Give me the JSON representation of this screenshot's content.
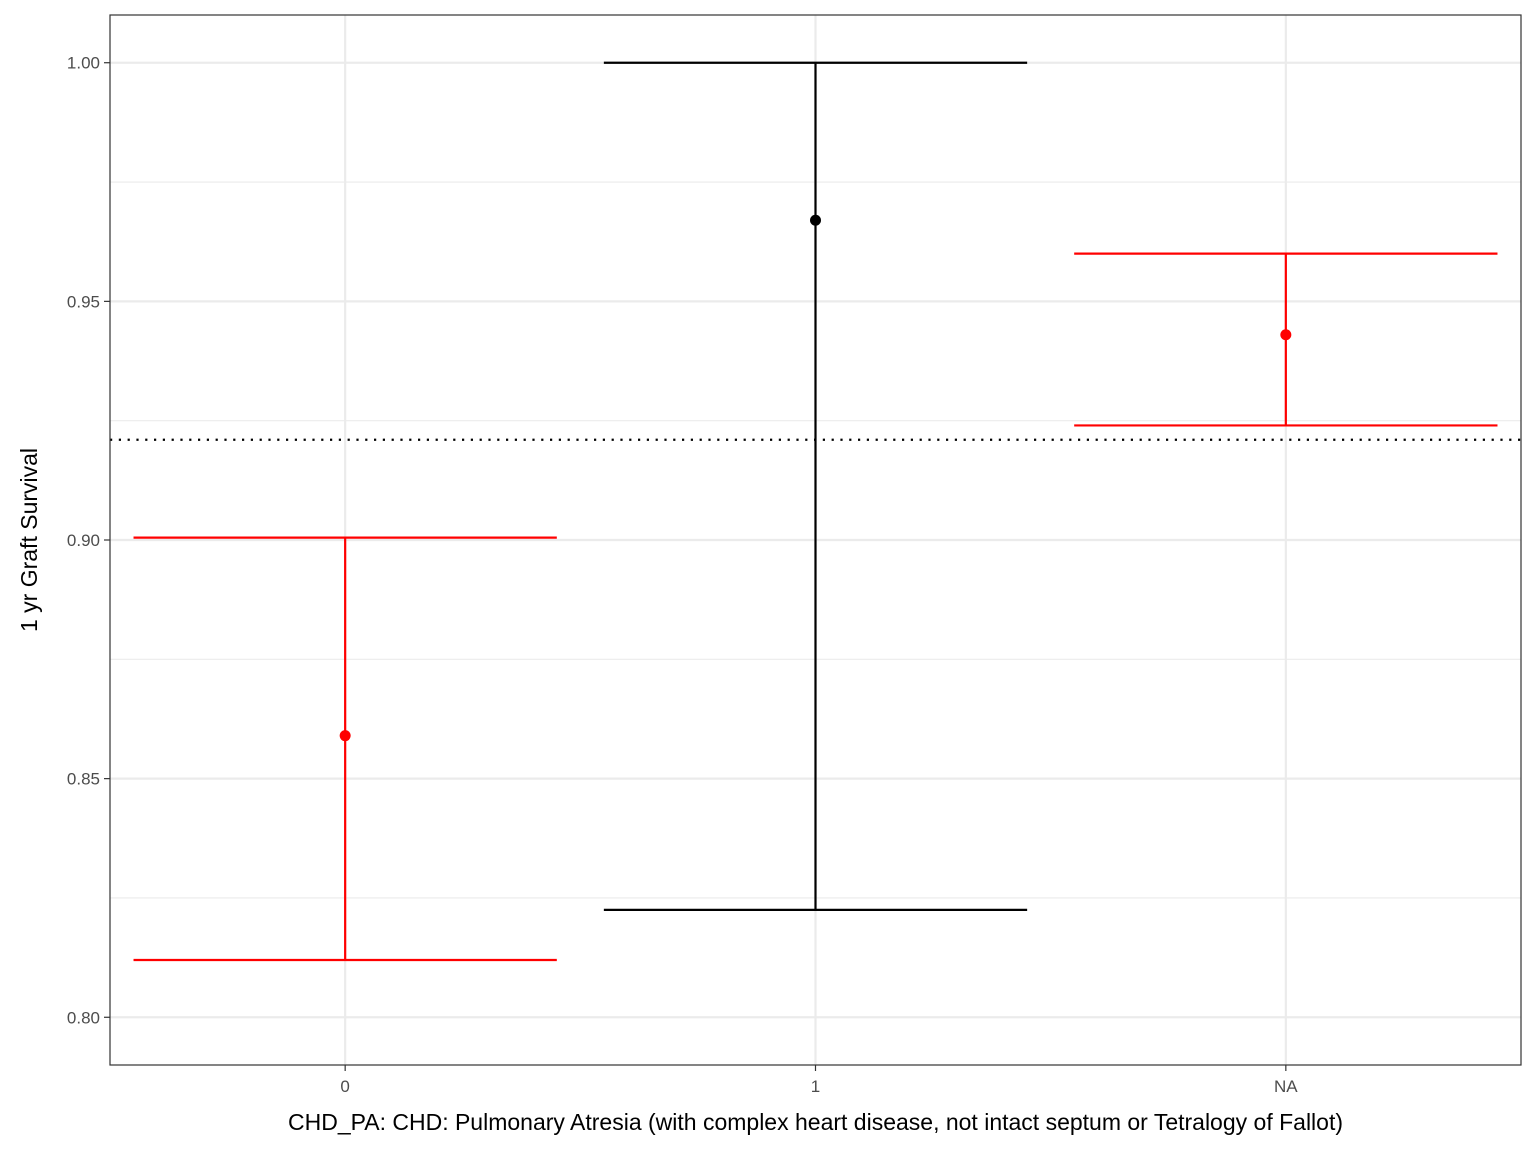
{
  "chart_data": {
    "type": "errorbar",
    "xlabel": "CHD_PA: CHD: Pulmonary Atresia (with complex heart disease, not intact septum or Tetralogy of Fallot)",
    "ylabel": "1 yr Graft Survival",
    "categories": [
      "0",
      "1",
      "NA"
    ],
    "points": [
      {
        "category": "0",
        "estimate": 0.859,
        "lower": 0.812,
        "upper": 0.9005,
        "color": "#ff0000"
      },
      {
        "category": "1",
        "estimate": 0.967,
        "lower": 0.8225,
        "upper": 1.0,
        "color": "#000000"
      },
      {
        "category": "NA",
        "estimate": 0.943,
        "lower": 0.924,
        "upper": 0.96,
        "color": "#ff0000"
      }
    ],
    "reference_line": {
      "y": 0.921,
      "style": "dotted",
      "color": "#000000"
    },
    "ylim": [
      0.79,
      1.01
    ],
    "yticks": [
      0.8,
      0.85,
      0.9,
      0.95,
      1.0
    ],
    "ytick_labels": [
      "0.80",
      "0.85",
      "0.90",
      "0.95",
      "1.00"
    ],
    "grid": true,
    "legend": "none"
  }
}
